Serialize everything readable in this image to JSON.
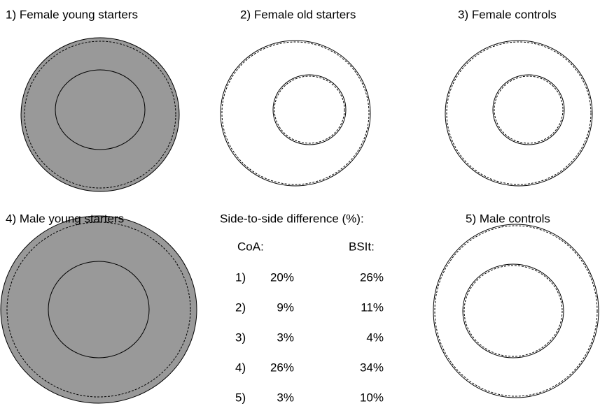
{
  "panels": [
    {
      "title": "1) Female young starters"
    },
    {
      "title": "2) Female old starters"
    },
    {
      "title": "3) Female controls"
    },
    {
      "title": "4) Male young starters"
    },
    {
      "title": "5) Male controls"
    }
  ],
  "table": {
    "title": "Side-to-side difference (%):",
    "headers": [
      "CoA:",
      "BSIt:"
    ],
    "rows": [
      {
        "label": "1)",
        "coa": "20%",
        "bsit": "26%"
      },
      {
        "label": "2)",
        "coa": "9%",
        "bsit": "11%"
      },
      {
        "label": "3)",
        "coa": "3%",
        "bsit": "4%"
      },
      {
        "label": "4)",
        "coa": "26%",
        "bsit": "34%"
      },
      {
        "label": "5)",
        "coa": "3%",
        "bsit": "10%"
      }
    ]
  }
}
